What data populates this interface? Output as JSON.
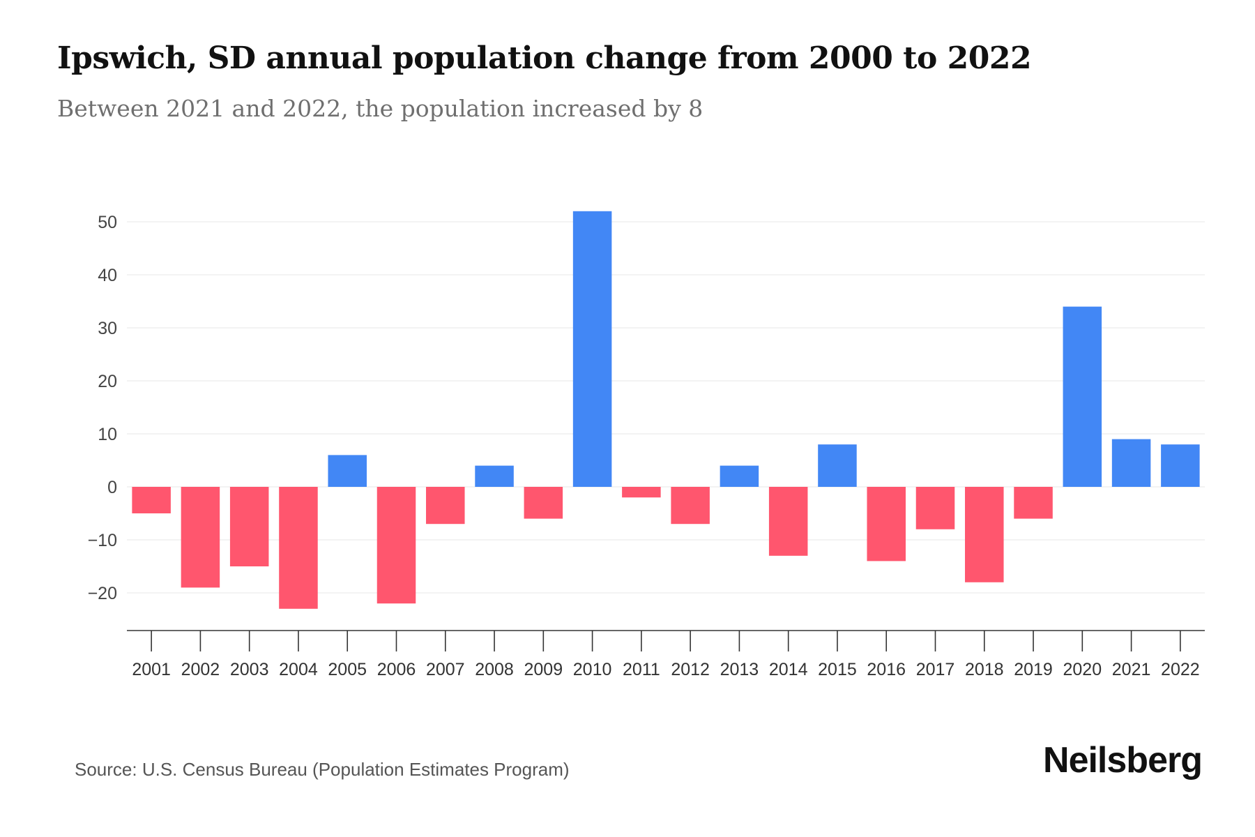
{
  "header": {
    "title": "Ipswich, SD annual population change from 2000 to 2022",
    "subtitle": "Between 2021 and 2022, the population increased by 8"
  },
  "footer": {
    "source": "Source: U.S. Census Bureau (Population Estimates Program)",
    "brand": "Neilsberg"
  },
  "colors": {
    "positive": "#4287f5",
    "negative": "#ff566e"
  },
  "chart_data": {
    "type": "bar",
    "title": "Ipswich, SD annual population change from 2000 to 2022",
    "subtitle": "Between 2021 and 2022, the population increased by 8",
    "xlabel": "",
    "ylabel": "",
    "categories": [
      "2001",
      "2002",
      "2003",
      "2004",
      "2005",
      "2006",
      "2007",
      "2008",
      "2009",
      "2010",
      "2011",
      "2012",
      "2013",
      "2014",
      "2015",
      "2016",
      "2017",
      "2018",
      "2019",
      "2020",
      "2021",
      "2022"
    ],
    "values": [
      -5,
      -19,
      -15,
      -23,
      6,
      -22,
      -7,
      4,
      -6,
      52,
      -2,
      -7,
      4,
      -13,
      8,
      -14,
      -8,
      -18,
      -6,
      34,
      9,
      8
    ],
    "yticks": [
      -20,
      -10,
      0,
      10,
      20,
      30,
      40,
      50
    ],
    "ytick_labels": [
      "−20",
      "−10",
      "0",
      "10",
      "20",
      "30",
      "40",
      "50"
    ],
    "ylim": [
      -27,
      54
    ],
    "grid": true
  }
}
